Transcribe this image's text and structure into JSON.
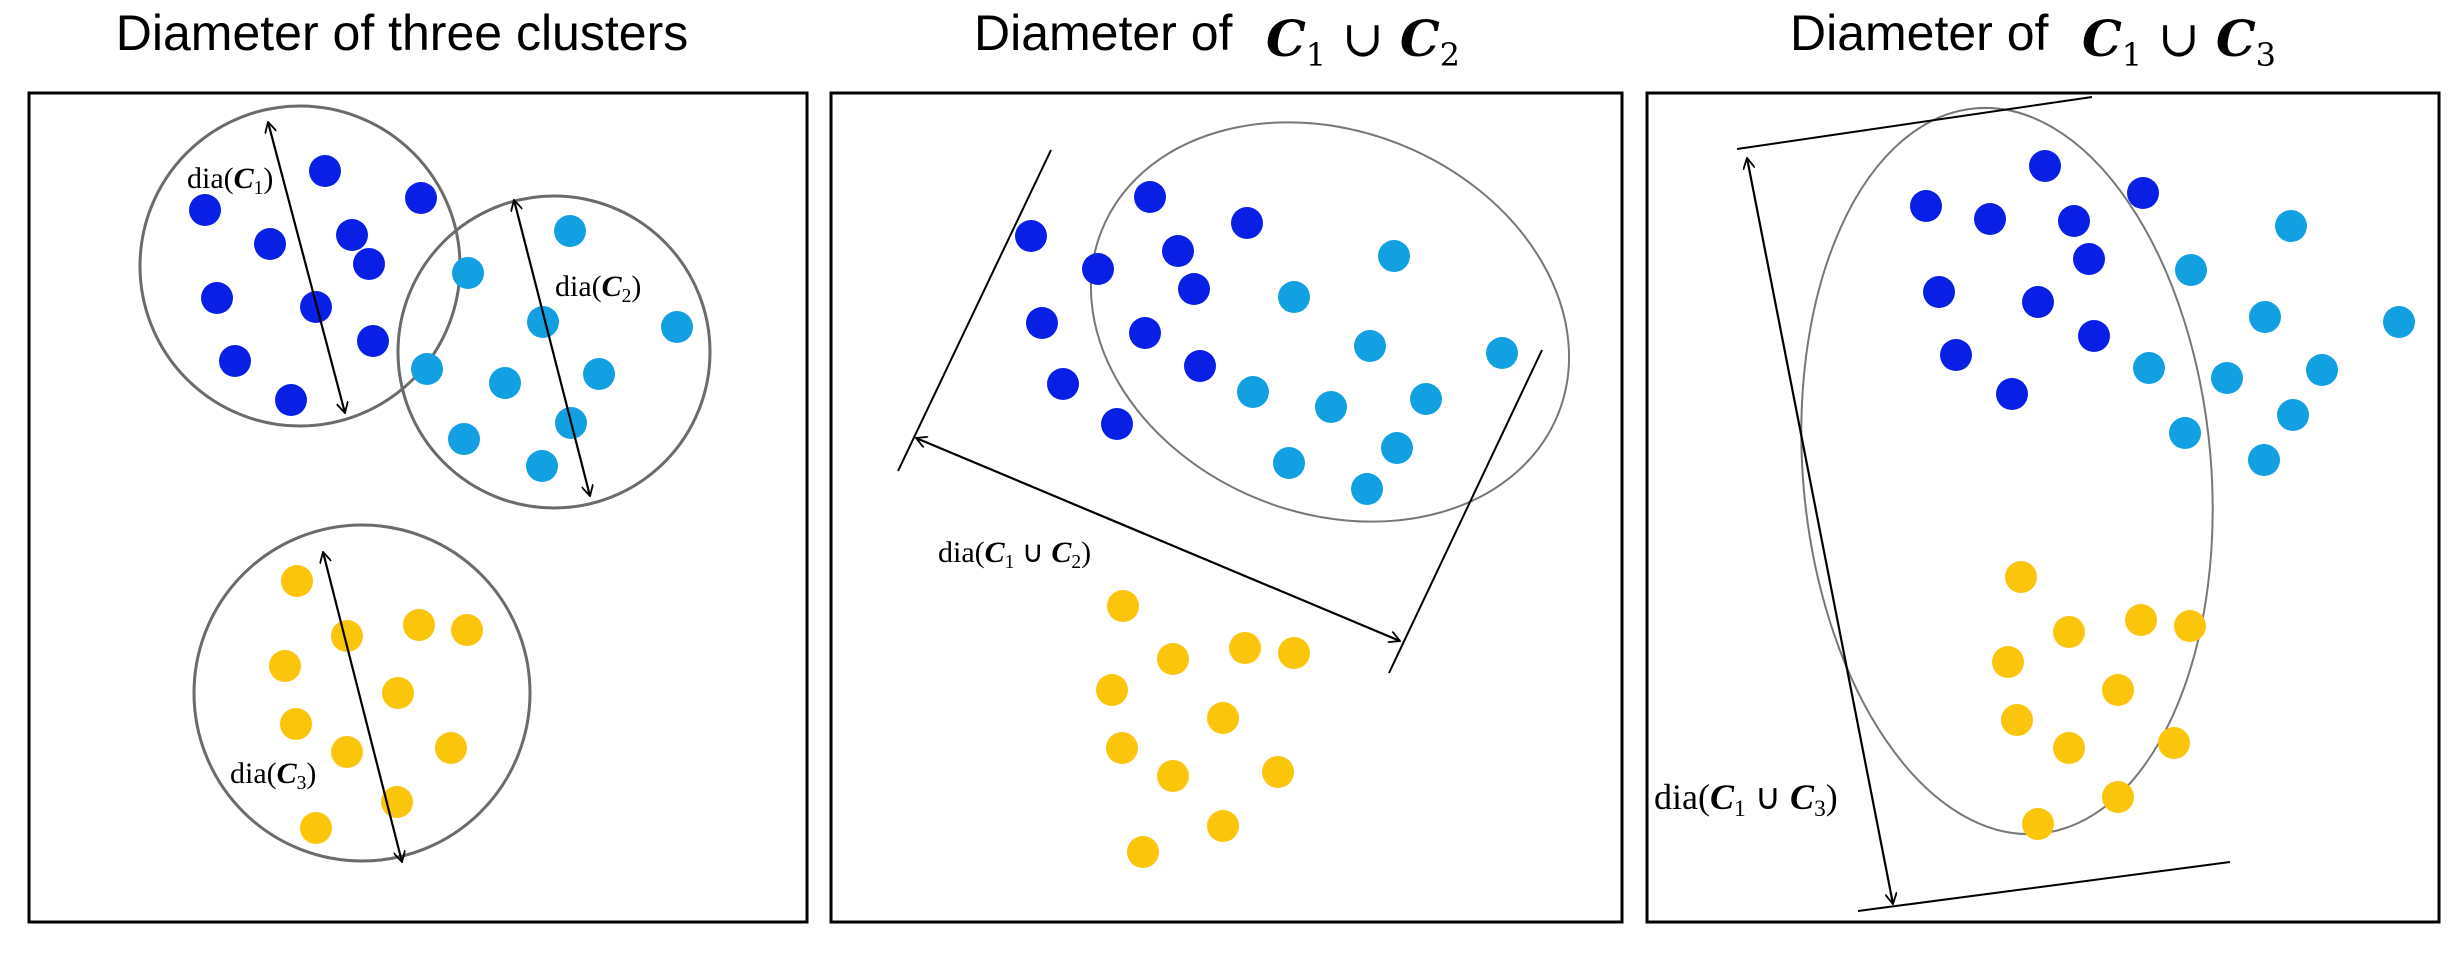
{
  "colors": {
    "cluster1": "#0a1fe6",
    "cluster2": "#12a0e2",
    "cluster3": "#fbc50c"
  },
  "panels": [
    {
      "title_text": "Diameter of three clusters",
      "labels": {
        "c1": "dia(C1)",
        "c2": "dia(C2)",
        "c3": "dia(C3)"
      }
    },
    {
      "title_text": "Diameter of",
      "title_math": "C1 ∪ C2",
      "label": "dia(C1 ∪ C2)"
    },
    {
      "title_text": "Diameter of",
      "title_math": "C1 ∪ C3",
      "label": "dia(C1 ∪ C3)"
    }
  ]
}
